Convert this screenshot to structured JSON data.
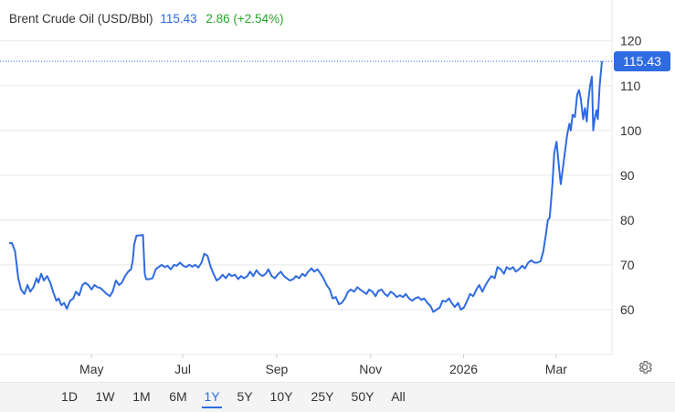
{
  "colors": {
    "line": "#2f6be1",
    "grid": "#e8e8e8",
    "axis_text": "#333333",
    "change_up": "#2aa52a",
    "price_label_bg": "#2f6be1"
  },
  "legend": {
    "name": "Brent Crude Oil (USD/Bbl)",
    "price": "115.43",
    "change": "2.86 (+2.54%)"
  },
  "price_label": "115.43",
  "settings_icon": "gear-icon",
  "range_buttons": [
    {
      "label": "1D",
      "active": false
    },
    {
      "label": "1W",
      "active": false
    },
    {
      "label": "1M",
      "active": false
    },
    {
      "label": "6M",
      "active": false
    },
    {
      "label": "1Y",
      "active": true
    },
    {
      "label": "5Y",
      "active": false
    },
    {
      "label": "10Y",
      "active": false
    },
    {
      "label": "25Y",
      "active": false
    },
    {
      "label": "50Y",
      "active": false
    },
    {
      "label": "All",
      "active": false
    }
  ],
  "chart_data": {
    "type": "line",
    "y_ticks": [
      60,
      70,
      80,
      90,
      100,
      110,
      120
    ],
    "ylim": [
      50,
      123
    ],
    "x_ticks": [
      {
        "label": "May",
        "x": 1.8
      },
      {
        "label": "Jul",
        "x": 3.79
      },
      {
        "label": "Sep",
        "x": 5.84
      },
      {
        "label": "Nov",
        "x": 7.89
      },
      {
        "label": "2026",
        "x": 9.92
      },
      {
        "label": "Mar",
        "x": 11.94
      }
    ],
    "xlim": [
      0,
      12.94
    ],
    "last_value": 115.43,
    "grid": true,
    "series": [
      {
        "points": [
          [
            0.0,
            74.8
          ],
          [
            0.06,
            74.9
          ],
          [
            0.13,
            73.0
          ],
          [
            0.2,
            67.0
          ],
          [
            0.26,
            64.5
          ],
          [
            0.33,
            63.5
          ],
          [
            0.4,
            65.5
          ],
          [
            0.46,
            64.0
          ],
          [
            0.53,
            65.0
          ],
          [
            0.6,
            67.0
          ],
          [
            0.64,
            66.0
          ],
          [
            0.7,
            68.0
          ],
          [
            0.76,
            66.5
          ],
          [
            0.83,
            67.5
          ],
          [
            0.9,
            66.0
          ],
          [
            0.96,
            64.0
          ],
          [
            1.03,
            62.0
          ],
          [
            1.08,
            62.5
          ],
          [
            1.14,
            61.0
          ],
          [
            1.2,
            61.5
          ],
          [
            1.26,
            60.2
          ],
          [
            1.33,
            62.0
          ],
          [
            1.4,
            62.5
          ],
          [
            1.46,
            64.0
          ],
          [
            1.53,
            63.2
          ],
          [
            1.6,
            65.5
          ],
          [
            1.66,
            66.0
          ],
          [
            1.73,
            65.5
          ],
          [
            1.8,
            64.5
          ],
          [
            1.86,
            65.5
          ],
          [
            1.93,
            65.0
          ],
          [
            2.0,
            64.8
          ],
          [
            2.06,
            64.2
          ],
          [
            2.13,
            63.5
          ],
          [
            2.2,
            63.0
          ],
          [
            2.26,
            64.0
          ],
          [
            2.33,
            66.5
          ],
          [
            2.4,
            65.5
          ],
          [
            2.46,
            66.0
          ],
          [
            2.53,
            67.5
          ],
          [
            2.6,
            68.5
          ],
          [
            2.66,
            69.0
          ],
          [
            2.7,
            71.0
          ],
          [
            2.73,
            74.5
          ],
          [
            2.78,
            76.5
          ],
          [
            2.86,
            76.6
          ],
          [
            2.92,
            76.7
          ],
          [
            2.96,
            68.0
          ],
          [
            2.99,
            66.8
          ],
          [
            3.06,
            66.8
          ],
          [
            3.13,
            67.0
          ],
          [
            3.2,
            69.0
          ],
          [
            3.26,
            69.5
          ],
          [
            3.33,
            70.0
          ],
          [
            3.4,
            69.5
          ],
          [
            3.46,
            69.8
          ],
          [
            3.53,
            69.0
          ],
          [
            3.6,
            70.0
          ],
          [
            3.66,
            69.8
          ],
          [
            3.73,
            70.5
          ],
          [
            3.8,
            69.8
          ],
          [
            3.86,
            69.5
          ],
          [
            3.93,
            70.0
          ],
          [
            4.0,
            69.6
          ],
          [
            4.06,
            70.0
          ],
          [
            4.13,
            69.4
          ],
          [
            4.2,
            70.5
          ],
          [
            4.26,
            72.5
          ],
          [
            4.33,
            72.0
          ],
          [
            4.4,
            69.5
          ],
          [
            4.46,
            68.0
          ],
          [
            4.53,
            66.5
          ],
          [
            4.6,
            67.0
          ],
          [
            4.66,
            67.8
          ],
          [
            4.73,
            67.0
          ],
          [
            4.8,
            68.0
          ],
          [
            4.86,
            67.5
          ],
          [
            4.93,
            67.8
          ],
          [
            5.0,
            66.8
          ],
          [
            5.06,
            67.5
          ],
          [
            5.13,
            67.0
          ],
          [
            5.2,
            67.5
          ],
          [
            5.26,
            68.5
          ],
          [
            5.33,
            67.5
          ],
          [
            5.4,
            68.8
          ],
          [
            5.46,
            68.0
          ],
          [
            5.53,
            67.5
          ],
          [
            5.6,
            68.0
          ],
          [
            5.66,
            69.0
          ],
          [
            5.73,
            67.5
          ],
          [
            5.8,
            67.0
          ],
          [
            5.86,
            67.8
          ],
          [
            5.93,
            68.5
          ],
          [
            6.0,
            67.5
          ],
          [
            6.06,
            67.0
          ],
          [
            6.13,
            66.5
          ],
          [
            6.2,
            66.8
          ],
          [
            6.26,
            67.5
          ],
          [
            6.33,
            67.0
          ],
          [
            6.4,
            68.0
          ],
          [
            6.46,
            67.5
          ],
          [
            6.53,
            68.5
          ],
          [
            6.6,
            69.2
          ],
          [
            6.66,
            68.5
          ],
          [
            6.73,
            69.0
          ],
          [
            6.8,
            68.0
          ],
          [
            6.86,
            67.0
          ],
          [
            6.93,
            65.5
          ],
          [
            7.0,
            64.5
          ],
          [
            7.06,
            62.5
          ],
          [
            7.13,
            62.8
          ],
          [
            7.2,
            61.2
          ],
          [
            7.26,
            61.5
          ],
          [
            7.33,
            62.5
          ],
          [
            7.4,
            64.0
          ],
          [
            7.46,
            64.5
          ],
          [
            7.53,
            64.0
          ],
          [
            7.6,
            65.0
          ],
          [
            7.66,
            64.5
          ],
          [
            7.73,
            64.0
          ],
          [
            7.8,
            63.5
          ],
          [
            7.86,
            64.5
          ],
          [
            7.93,
            64.0
          ],
          [
            8.0,
            63.0
          ],
          [
            8.06,
            64.2
          ],
          [
            8.13,
            64.5
          ],
          [
            8.2,
            63.5
          ],
          [
            8.26,
            63.0
          ],
          [
            8.33,
            64.0
          ],
          [
            8.4,
            63.5
          ],
          [
            8.46,
            62.8
          ],
          [
            8.53,
            63.2
          ],
          [
            8.6,
            62.8
          ],
          [
            8.66,
            63.5
          ],
          [
            8.73,
            62.5
          ],
          [
            8.8,
            62.0
          ],
          [
            8.86,
            62.5
          ],
          [
            8.93,
            62.8
          ],
          [
            9.0,
            62.2
          ],
          [
            9.06,
            62.5
          ],
          [
            9.13,
            61.5
          ],
          [
            9.2,
            60.8
          ],
          [
            9.26,
            59.5
          ],
          [
            9.33,
            60.0
          ],
          [
            9.4,
            60.5
          ],
          [
            9.46,
            62.0
          ],
          [
            9.53,
            61.8
          ],
          [
            9.6,
            62.5
          ],
          [
            9.66,
            61.5
          ],
          [
            9.73,
            60.6
          ],
          [
            9.8,
            61.5
          ],
          [
            9.86,
            60.0
          ],
          [
            9.93,
            60.5
          ],
          [
            10.0,
            62.0
          ],
          [
            10.06,
            63.5
          ],
          [
            10.13,
            63.0
          ],
          [
            10.2,
            64.5
          ],
          [
            10.26,
            65.5
          ],
          [
            10.33,
            64.0
          ],
          [
            10.4,
            65.5
          ],
          [
            10.46,
            66.5
          ],
          [
            10.53,
            67.5
          ],
          [
            10.6,
            67.0
          ],
          [
            10.66,
            69.5
          ],
          [
            10.73,
            69.0
          ],
          [
            10.8,
            68.0
          ],
          [
            10.86,
            69.5
          ],
          [
            10.93,
            69.0
          ],
          [
            11.0,
            69.5
          ],
          [
            11.06,
            68.5
          ],
          [
            11.13,
            69.0
          ],
          [
            11.2,
            69.8
          ],
          [
            11.26,
            69.2
          ],
          [
            11.33,
            70.5
          ],
          [
            11.4,
            71.0
          ],
          [
            11.46,
            70.5
          ],
          [
            11.53,
            70.5
          ],
          [
            11.6,
            70.8
          ],
          [
            11.66,
            73.0
          ],
          [
            11.72,
            77.0
          ],
          [
            11.76,
            80.0
          ],
          [
            11.8,
            80.5
          ],
          [
            11.86,
            88.0
          ],
          [
            11.9,
            95.0
          ],
          [
            11.95,
            97.5
          ],
          [
            12.0,
            92.0
          ],
          [
            12.04,
            88.0
          ],
          [
            12.08,
            91.0
          ],
          [
            12.13,
            95.0
          ],
          [
            12.18,
            99.0
          ],
          [
            12.23,
            101.5
          ],
          [
            12.26,
            100.0
          ],
          [
            12.3,
            103.5
          ],
          [
            12.35,
            103.0
          ],
          [
            12.4,
            108.0
          ],
          [
            12.44,
            109.0
          ],
          [
            12.48,
            107.0
          ],
          [
            12.53,
            102.5
          ],
          [
            12.57,
            105.0
          ],
          [
            12.61,
            102.0
          ],
          [
            12.64,
            106.5
          ],
          [
            12.68,
            110.0
          ],
          [
            12.72,
            112.0
          ],
          [
            12.75,
            100.0
          ],
          [
            12.78,
            102.5
          ],
          [
            12.82,
            104.5
          ],
          [
            12.85,
            102.5
          ],
          [
            12.89,
            110.0
          ],
          [
            12.94,
            115.43
          ]
        ]
      }
    ]
  }
}
